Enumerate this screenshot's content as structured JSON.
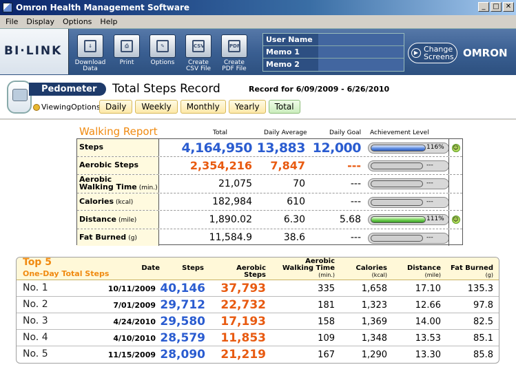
{
  "window": {
    "title": "Omron Health Management Software",
    "min": "_",
    "max": "□",
    "close": "✕"
  },
  "menu": [
    "File",
    "Display",
    "Options",
    "Help"
  ],
  "toolbar": {
    "logo": "BI·LINK",
    "buttons": [
      {
        "icon": "download-icon",
        "label1": "Download",
        "label2": "Data"
      },
      {
        "icon": "print-icon",
        "label1": "Print",
        "label2": ""
      },
      {
        "icon": "options-icon",
        "label1": "Options",
        "label2": ""
      },
      {
        "icon": "csv-icon",
        "glyph": "CSV",
        "label1": "Create",
        "label2": "CSV File"
      },
      {
        "icon": "pdf-icon",
        "glyph": "PDF",
        "label1": "Create",
        "label2": "PDF File"
      }
    ],
    "memo": [
      {
        "label": "User Name",
        "value": ""
      },
      {
        "label": "Memo 1",
        "value": ""
      },
      {
        "label": "Memo 2",
        "value": ""
      }
    ],
    "change_screens_1": "Change",
    "change_screens_2": "Screens",
    "brand": "OMRON"
  },
  "header": {
    "device_tag": "Pedometer",
    "title": "Total Steps Record",
    "record_for": "Record for 6/09/2009 - 6/26/2010",
    "viewing_options": "ViewingOptions",
    "tabs": [
      "Daily",
      "Weekly",
      "Monthly",
      "Yearly",
      "Total"
    ],
    "active_tab": "Total"
  },
  "walking_report": {
    "title": "Walking Report",
    "columns": {
      "total": "Total",
      "avg": "Daily Average",
      "goal": "Daily Goal",
      "ach": "Achievement Level"
    },
    "rows": [
      {
        "label": "Steps",
        "unit": "",
        "total": "4,164,950",
        "avg": "13,883",
        "goal": "12,000",
        "ach_pct": "116%",
        "ach_fraction": 1.16,
        "smile": true,
        "style": "blue"
      },
      {
        "label": "Aerobic Steps",
        "unit": "",
        "total": "2,354,216",
        "avg": "7,847",
        "goal": "---",
        "ach_pct": "---",
        "ach_fraction": 0,
        "smile": false,
        "style": "orange"
      },
      {
        "label": "Aerobic",
        "label2": "Walking Time",
        "unit": "(min.)",
        "total": "21,075",
        "avg": "70",
        "goal": "---",
        "ach_pct": "---",
        "ach_fraction": 0,
        "smile": false,
        "style": "plain"
      },
      {
        "label": "Calories",
        "unit": "(kcal)",
        "total": "182,984",
        "avg": "610",
        "goal": "---",
        "ach_pct": "---",
        "ach_fraction": 0,
        "smile": false,
        "style": "plain"
      },
      {
        "label": "Distance",
        "unit": "(mile)",
        "total": "1,890.02",
        "avg": "6.30",
        "goal": "5.68",
        "ach_pct": "111%",
        "ach_fraction": 1.11,
        "smile": true,
        "style": "plain"
      },
      {
        "label": "Fat Burned",
        "unit": "(g)",
        "total": "11,584.9",
        "avg": "38.6",
        "goal": "---",
        "ach_pct": "---",
        "ach_fraction": 0,
        "smile": false,
        "style": "plain"
      }
    ]
  },
  "top5": {
    "title": "Top 5",
    "subtitle": "One-Day Total Steps",
    "columns": {
      "date": "Date",
      "steps": "Steps",
      "aerobic": "Aerobic Steps",
      "awt1": "Aerobic",
      "awt2": "Walking Time",
      "awt_unit": "(min.)",
      "cal": "Calories",
      "cal_unit": "(kcal)",
      "dist": "Distance",
      "dist_unit": "(mile)",
      "fat": "Fat Burned",
      "fat_unit": "(g)"
    },
    "rows": [
      {
        "rank": "No. 1",
        "date": "10/11/2009",
        "steps": "40,146",
        "aerobic": "37,793",
        "awt": "335",
        "cal": "1,658",
        "dist": "17.10",
        "fat": "135.3"
      },
      {
        "rank": "No. 2",
        "date": "7/01/2009",
        "steps": "29,712",
        "aerobic": "22,732",
        "awt": "181",
        "cal": "1,323",
        "dist": "12.66",
        "fat": "97.8"
      },
      {
        "rank": "No. 3",
        "date": "4/24/2010",
        "steps": "29,580",
        "aerobic": "17,193",
        "awt": "158",
        "cal": "1,369",
        "dist": "14.00",
        "fat": "82.5"
      },
      {
        "rank": "No. 4",
        "date": "4/10/2010",
        "steps": "28,579",
        "aerobic": "11,853",
        "awt": "109",
        "cal": "1,348",
        "dist": "13.53",
        "fat": "85.1"
      },
      {
        "rank": "No. 5",
        "date": "11/15/2009",
        "steps": "28,090",
        "aerobic": "21,219",
        "awt": "167",
        "cal": "1,290",
        "dist": "13.30",
        "fat": "85.8"
      }
    ]
  }
}
